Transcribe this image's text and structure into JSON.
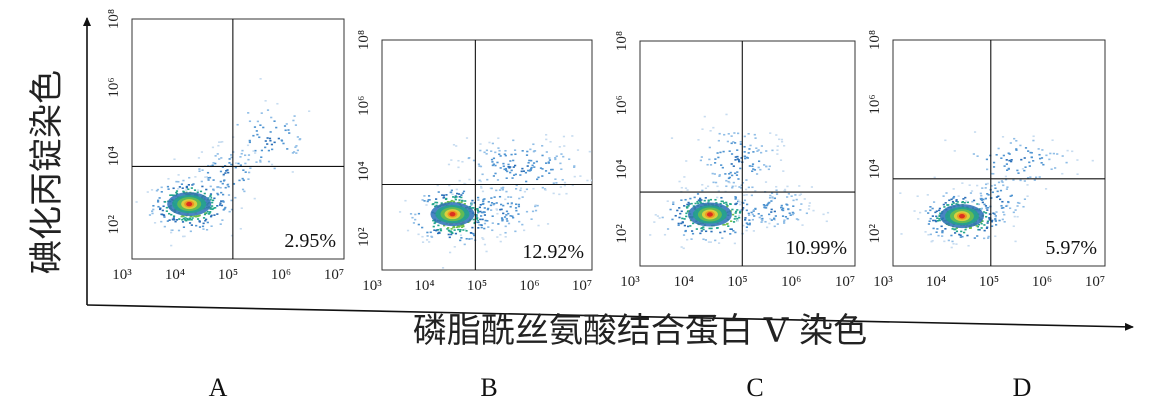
{
  "figure": {
    "y_title": "碘化丙锭染色",
    "x_title": "磷脂酰丝氨酸结合蛋白 V 染色"
  },
  "chart_data": [
    {
      "type": "scatter",
      "panel_label": "A",
      "quadrant_text": "2.95%",
      "x_ticks": [
        "10³",
        "10⁴",
        "10⁵",
        "10⁶",
        "10⁷"
      ],
      "y_ticks": [
        "10²",
        "10⁴",
        "10⁶",
        "10⁸"
      ],
      "x_scale": "log",
      "y_scale": "log",
      "xlim": [
        1000,
        10000000
      ],
      "ylim": [
        10,
        100000000
      ],
      "gate": {
        "x": 80000,
        "y": 5000
      },
      "core": {
        "x": 12000,
        "y": 400
      },
      "clouds": [
        {
          "x": 12000,
          "y": 400,
          "sx": 0.35,
          "sy": 0.35,
          "n": 320
        },
        {
          "x": 400000,
          "y": 30000,
          "sx": 0.45,
          "sy": 0.55,
          "n": 70
        },
        {
          "x": 60000,
          "y": 3000,
          "sx": 0.35,
          "sy": 0.45,
          "n": 80
        }
      ]
    },
    {
      "type": "scatter",
      "panel_label": "B",
      "quadrant_text": "12.92%",
      "x_ticks": [
        "10³",
        "10⁴",
        "10⁵",
        "10⁶",
        "10⁷"
      ],
      "y_ticks": [
        "10²",
        "10⁴",
        "10⁶",
        "10⁸"
      ],
      "x_scale": "log",
      "y_scale": "log",
      "xlim": [
        1000,
        10000000
      ],
      "ylim": [
        10,
        100000000
      ],
      "gate": {
        "x": 60000,
        "y": 4000
      },
      "core": {
        "x": 22000,
        "y": 500
      },
      "clouds": [
        {
          "x": 22000,
          "y": 500,
          "sx": 0.35,
          "sy": 0.4,
          "n": 300
        },
        {
          "x": 400000,
          "y": 15000,
          "sx": 0.6,
          "sy": 0.45,
          "n": 160
        },
        {
          "x": 150000,
          "y": 700,
          "sx": 0.45,
          "sy": 0.4,
          "n": 110
        }
      ]
    },
    {
      "type": "scatter",
      "panel_label": "C",
      "quadrant_text": "10.99%",
      "x_ticks": [
        "10³",
        "10⁴",
        "10⁵",
        "10⁶",
        "10⁷"
      ],
      "y_ticks": [
        "10²",
        "10⁴",
        "10⁶",
        "10⁸"
      ],
      "x_scale": "log",
      "y_scale": "log",
      "xlim": [
        1000,
        10000000
      ],
      "ylim": [
        10,
        100000000
      ],
      "gate": {
        "x": 80000,
        "y": 2000
      },
      "core": {
        "x": 20000,
        "y": 400
      },
      "clouds": [
        {
          "x": 20000,
          "y": 400,
          "sx": 0.4,
          "sy": 0.35,
          "n": 320
        },
        {
          "x": 60000,
          "y": 20000,
          "sx": 0.4,
          "sy": 0.55,
          "n": 140
        },
        {
          "x": 300000,
          "y": 600,
          "sx": 0.35,
          "sy": 0.35,
          "n": 100
        }
      ]
    },
    {
      "type": "scatter",
      "panel_label": "D",
      "quadrant_text": "5.97%",
      "x_ticks": [
        "10³",
        "10⁴",
        "10⁵",
        "10⁶",
        "10⁷"
      ],
      "y_ticks": [
        "10²",
        "10⁴",
        "10⁶",
        "10⁸"
      ],
      "x_scale": "log",
      "y_scale": "log",
      "xlim": [
        1000,
        10000000
      ],
      "ylim": [
        10,
        100000000
      ],
      "gate": {
        "x": 70000,
        "y": 5000
      },
      "core": {
        "x": 20000,
        "y": 350
      },
      "clouds": [
        {
          "x": 20000,
          "y": 350,
          "sx": 0.35,
          "sy": 0.35,
          "n": 300
        },
        {
          "x": 200000,
          "y": 20000,
          "sx": 0.55,
          "sy": 0.4,
          "n": 90
        },
        {
          "x": 90000,
          "y": 1200,
          "sx": 0.3,
          "sy": 0.35,
          "n": 70
        }
      ]
    }
  ]
}
